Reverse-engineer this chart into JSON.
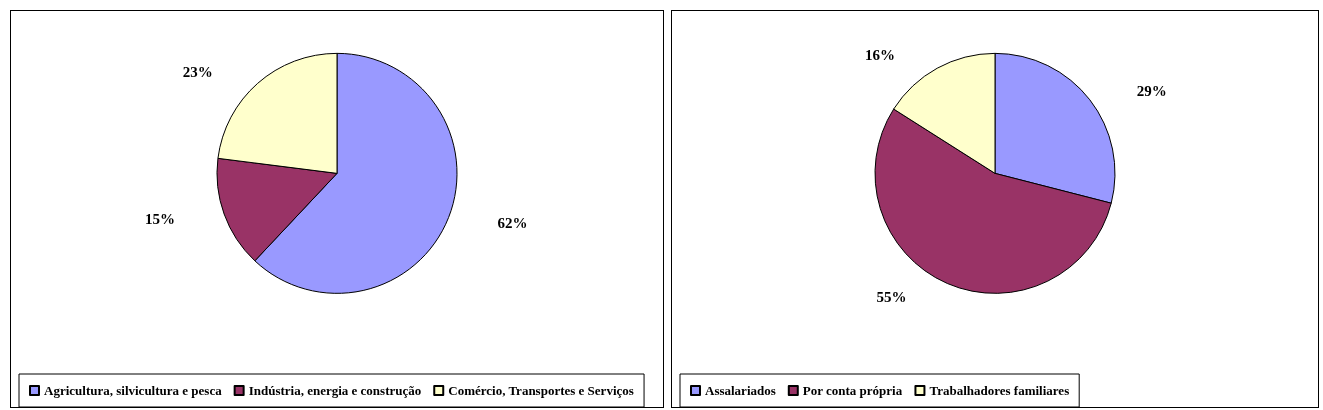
{
  "chart_data": [
    {
      "type": "pie",
      "categories": [
        "Agricultura, silvicultura e pesca",
        "Indústria, energia e construção",
        "Comércio, Transportes e Serviços"
      ],
      "values": [
        62,
        15,
        23
      ],
      "colors": [
        "#9999ff",
        "#993366",
        "#ffffcc"
      ],
      "value_labels": [
        "62%",
        "15%",
        "23%"
      ],
      "legend": "bottom"
    },
    {
      "type": "pie",
      "categories": [
        "Assalariados",
        "Por conta própria",
        "Trabalhadores familiares"
      ],
      "values": [
        29,
        55,
        16
      ],
      "colors": [
        "#9999ff",
        "#993366",
        "#ffffcc"
      ],
      "value_labels": [
        "29%",
        "55%",
        "16%"
      ],
      "legend": "bottom"
    }
  ]
}
